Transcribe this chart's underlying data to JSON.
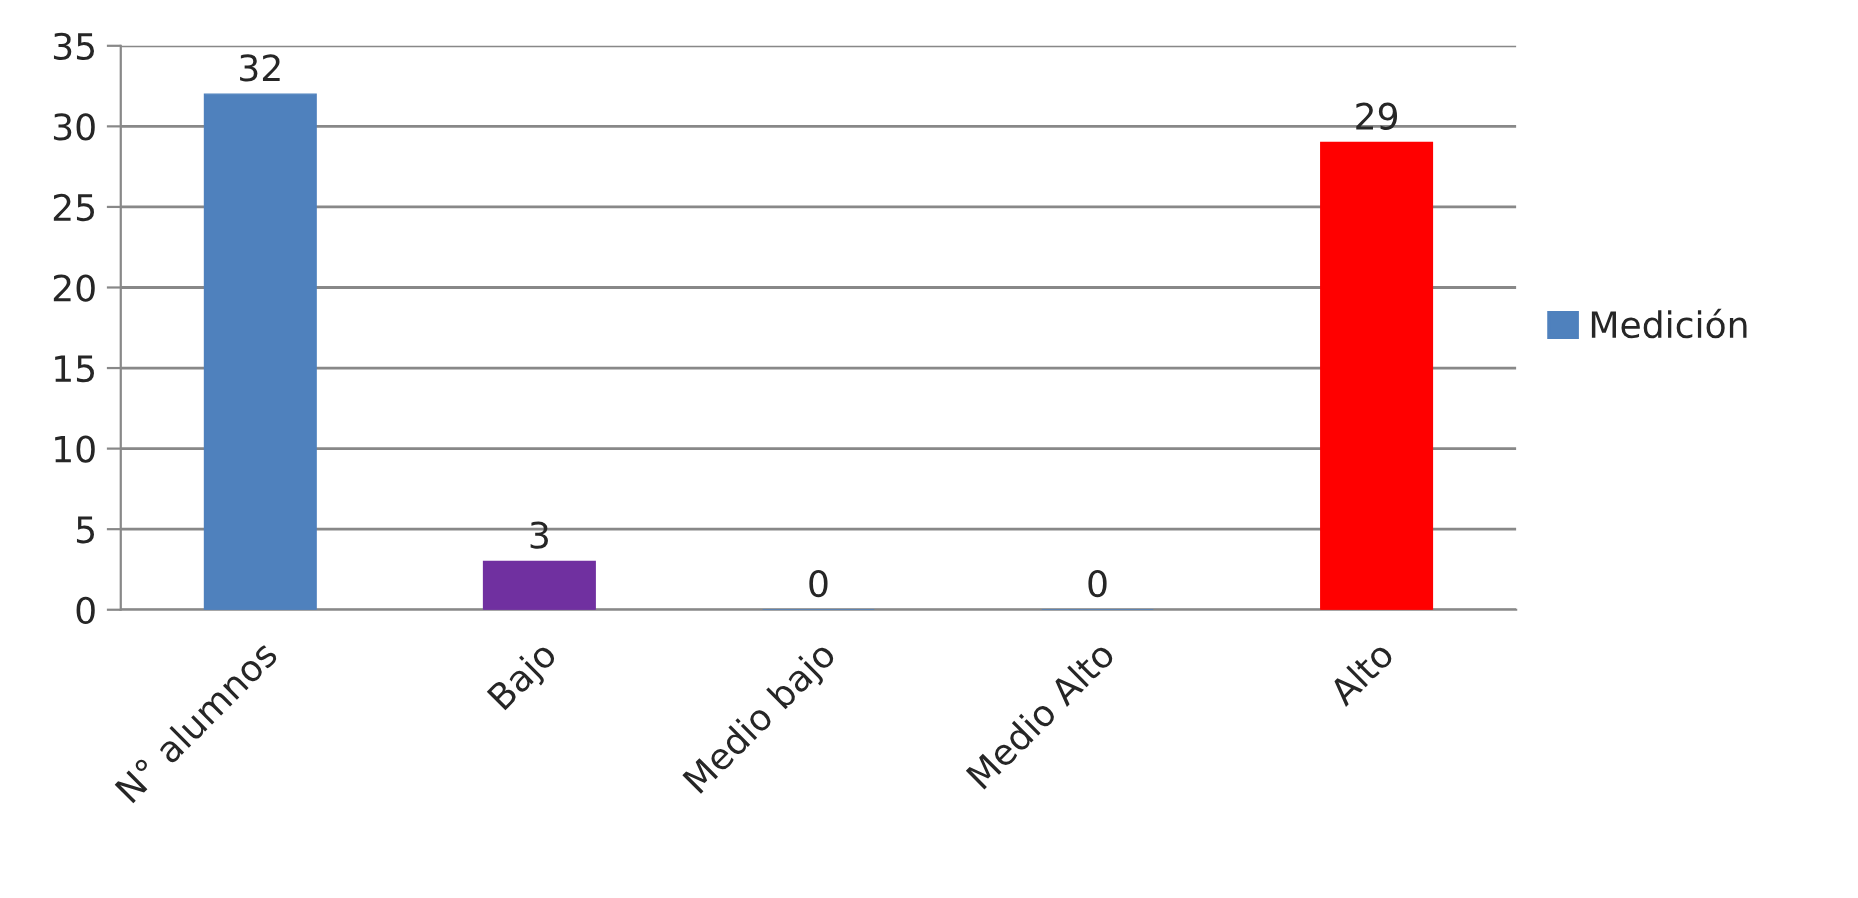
{
  "chart_data": {
    "type": "bar",
    "categories": [
      "N° alumnos",
      "Bajo",
      "Medio bajo",
      "Medio Alto",
      "Alto"
    ],
    "series": [
      {
        "name": "Medición",
        "color": "#4f81bd",
        "colors": [
          "#4f81bd",
          "#7030a0",
          "#4f81bd",
          "#4f81bd",
          "#ff0000"
        ],
        "values": [
          32,
          3,
          0,
          0,
          29
        ]
      }
    ],
    "ylim": [
      0,
      35
    ],
    "yticks": [
      0,
      5,
      10,
      15,
      20,
      25,
      30,
      35
    ],
    "grid": "y",
    "legend": "right",
    "data_labels": true
  }
}
